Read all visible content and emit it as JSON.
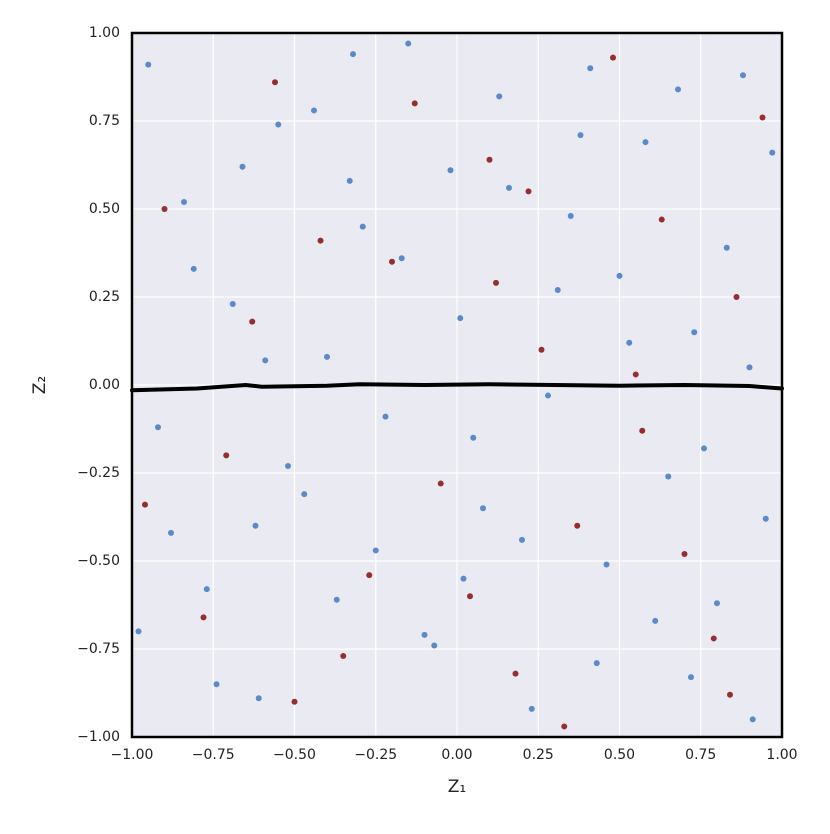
{
  "chart_data": {
    "type": "scatter",
    "xlabel": "Z₁",
    "ylabel": "Z₂",
    "xlim": [
      -1,
      1
    ],
    "ylim": [
      -1,
      1
    ],
    "xticks": [
      {
        "value": -1,
        "label": "−1.00"
      },
      {
        "value": -0.75,
        "label": "−0.75"
      },
      {
        "value": -0.5,
        "label": "−0.50"
      },
      {
        "value": -0.25,
        "label": "−0.25"
      },
      {
        "value": 0,
        "label": "0.00"
      },
      {
        "value": 0.25,
        "label": "0.25"
      },
      {
        "value": 0.5,
        "label": "0.50"
      },
      {
        "value": 0.75,
        "label": "0.75"
      },
      {
        "value": 1,
        "label": "1.00"
      }
    ],
    "yticks": [
      {
        "value": -1,
        "label": "−1.00"
      },
      {
        "value": -0.75,
        "label": "−0.75"
      },
      {
        "value": -0.5,
        "label": "−0.50"
      },
      {
        "value": -0.25,
        "label": "−0.25"
      },
      {
        "value": 0,
        "label": "0.00"
      },
      {
        "value": 0.25,
        "label": "0.25"
      },
      {
        "value": 0.5,
        "label": "0.50"
      },
      {
        "value": 0.75,
        "label": "0.75"
      },
      {
        "value": 1,
        "label": "1.00"
      }
    ],
    "grid": true,
    "series": [
      {
        "color": "#4a7fc5",
        "x": [
          -0.95,
          -0.88,
          -0.81,
          -0.74,
          -0.66,
          -0.59,
          -0.52,
          -0.44,
          -0.37,
          -0.29,
          -0.22,
          -0.15,
          -0.07,
          0.01,
          0.08,
          0.16,
          0.23,
          0.31,
          0.38,
          0.46,
          0.53,
          0.61,
          0.68,
          0.76,
          0.83,
          0.91,
          0.97,
          -0.92,
          -0.84,
          -0.77,
          -0.69,
          -0.61,
          -0.55,
          -0.47,
          -0.4,
          -0.32,
          -0.25,
          -0.17,
          -0.1,
          -0.02,
          0.05,
          0.13,
          0.2,
          0.28,
          0.35,
          0.43,
          0.5,
          0.58,
          0.65,
          0.73,
          0.8,
          0.88,
          0.95,
          -0.98,
          -0.62,
          -0.33,
          0.02,
          0.41,
          0.72,
          0.9
        ],
        "y": [
          0.91,
          -0.42,
          0.33,
          -0.85,
          0.62,
          0.07,
          -0.23,
          0.78,
          -0.61,
          0.45,
          -0.09,
          0.97,
          -0.74,
          0.19,
          -0.35,
          0.56,
          -0.92,
          0.27,
          0.71,
          -0.51,
          0.12,
          -0.67,
          0.84,
          -0.18,
          0.39,
          -0.95,
          0.66,
          -0.12,
          0.52,
          -0.58,
          0.23,
          -0.89,
          0.74,
          -0.31,
          0.08,
          0.94,
          -0.47,
          0.36,
          -0.71,
          0.61,
          -0.15,
          0.82,
          -0.44,
          -0.03,
          0.48,
          -0.79,
          0.31,
          0.69,
          -0.26,
          0.15,
          -0.62,
          0.88,
          -0.38,
          -0.7,
          -0.4,
          0.58,
          -0.55,
          0.9,
          -0.83,
          0.05
        ]
      },
      {
        "color": "#8b1a1a",
        "x": [
          -0.9,
          -0.78,
          -0.63,
          -0.5,
          -0.42,
          -0.27,
          -0.13,
          -0.05,
          0.1,
          0.18,
          0.26,
          0.37,
          0.48,
          0.57,
          0.63,
          0.79,
          0.86,
          0.94,
          -0.71,
          -0.56,
          -0.35,
          -0.2,
          0.04,
          0.22,
          0.33,
          0.55,
          0.7,
          0.84,
          -0.96,
          0.12
        ],
        "y": [
          0.5,
          -0.66,
          0.18,
          -0.9,
          0.41,
          -0.54,
          0.8,
          -0.28,
          0.64,
          -0.82,
          0.1,
          -0.4,
          0.93,
          -0.13,
          0.47,
          -0.72,
          0.25,
          0.76,
          -0.2,
          0.86,
          -0.77,
          0.35,
          -0.6,
          0.55,
          -0.97,
          0.03,
          -0.48,
          -0.88,
          -0.34,
          0.29
        ]
      }
    ],
    "line": {
      "color": "#000000",
      "x": [
        -1,
        -0.8,
        -0.65,
        -0.6,
        -0.4,
        -0.3,
        -0.1,
        0.1,
        0.3,
        0.5,
        0.7,
        0.9,
        1
      ],
      "y": [
        -0.015,
        -0.01,
        0.0,
        -0.005,
        -0.002,
        0.002,
        0.0,
        0.002,
        0.0,
        -0.002,
        0.0,
        -0.003,
        -0.01
      ]
    }
  }
}
